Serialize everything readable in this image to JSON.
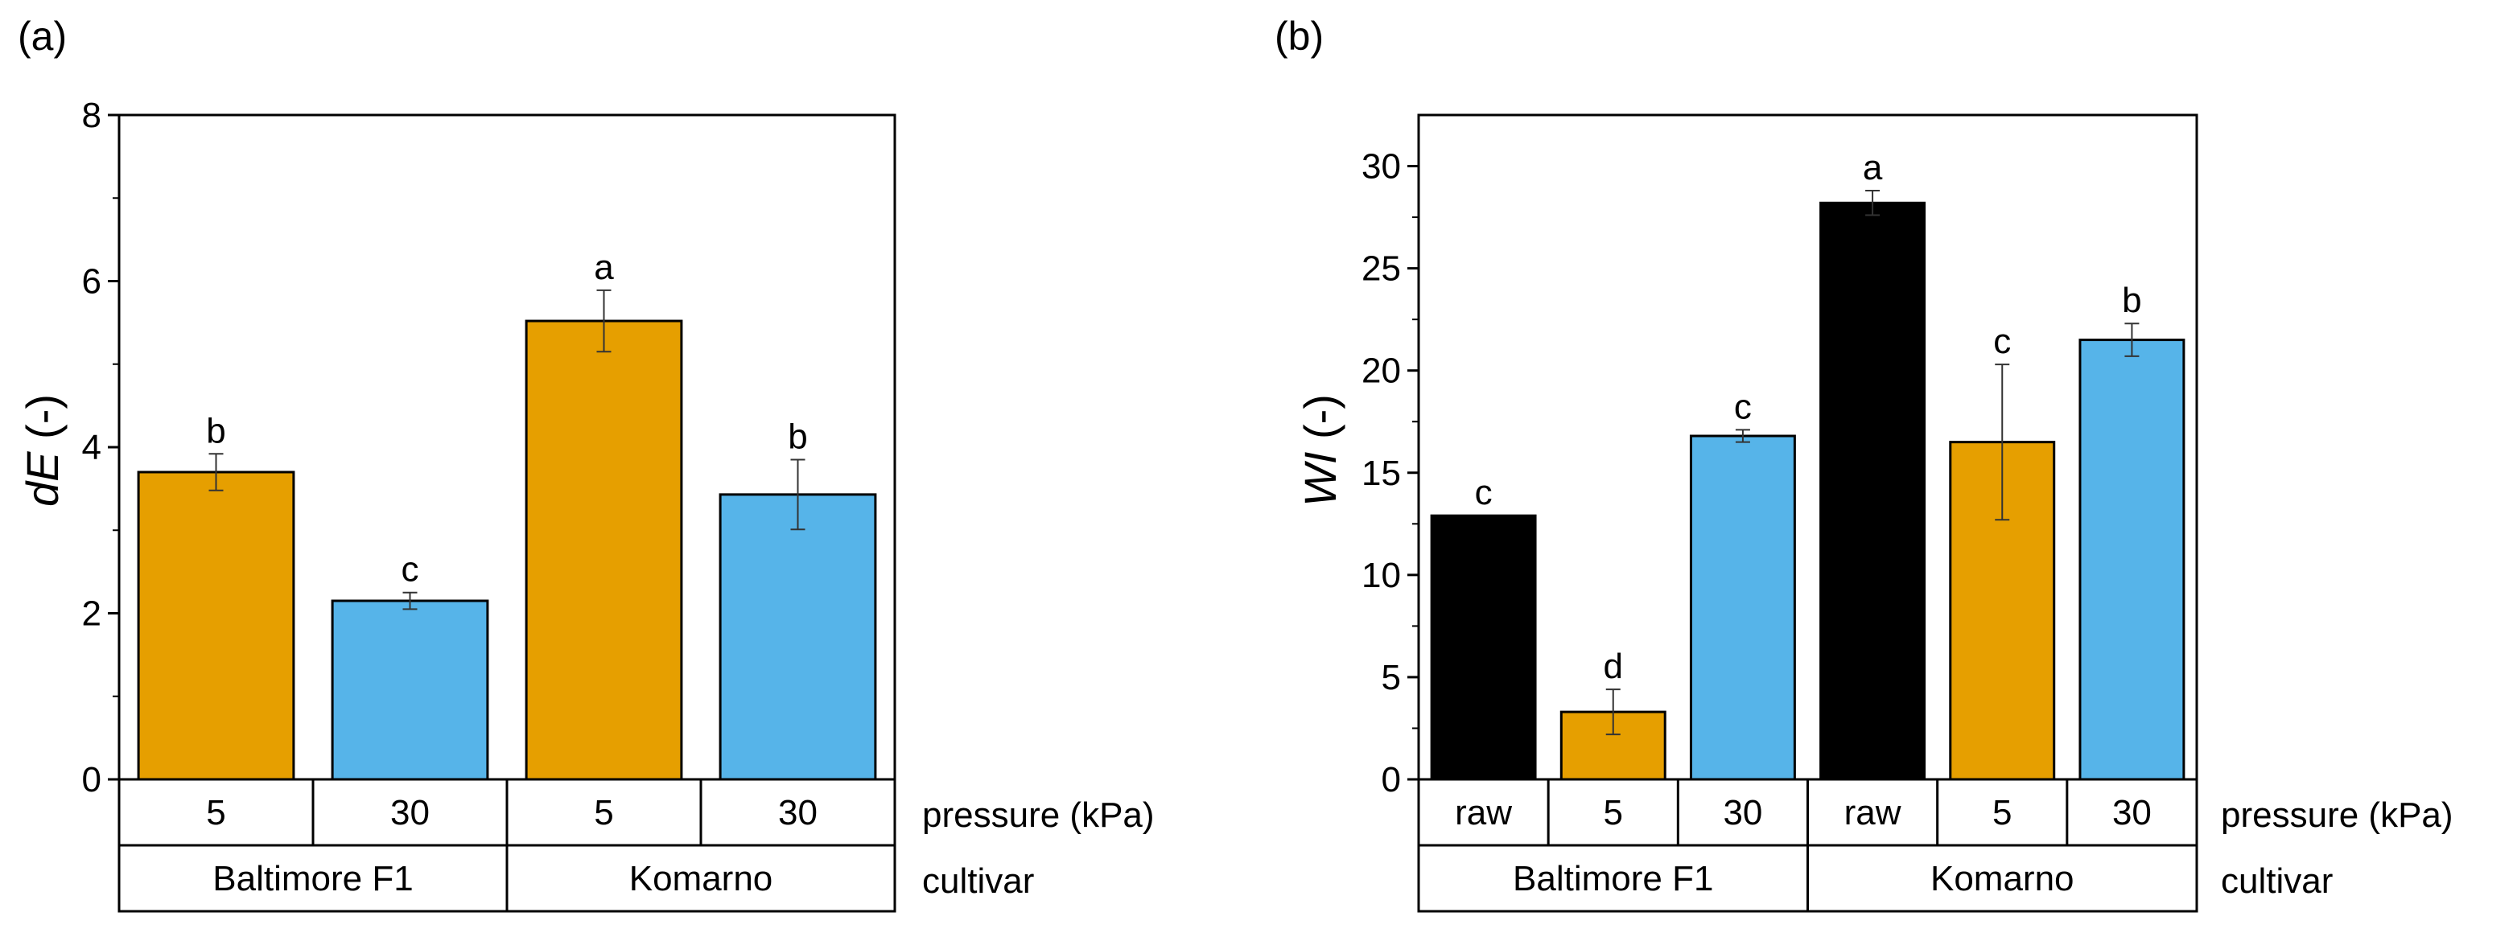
{
  "chart_data": [
    {
      "panel": "(a)",
      "type": "bar",
      "ylabel_main": "dE",
      "ylabel_unit": " (-)",
      "ylim": [
        0,
        8
      ],
      "yticks": [
        0,
        2,
        4,
        6,
        8
      ],
      "y_minor_step": 1,
      "pressure_row_label": "pressure (kPa)",
      "cultivar_row_label": "cultivar",
      "categories": [
        "5",
        "30",
        "5",
        "30"
      ],
      "cultivars": [
        {
          "name": "Baltimore F1",
          "span": 2
        },
        {
          "name": "Komarno",
          "span": 2
        }
      ],
      "bars": [
        {
          "value": 3.7,
          "err": 0.22,
          "letter": "b",
          "color": "#E69F00"
        },
        {
          "value": 2.15,
          "err": 0.1,
          "letter": "c",
          "color": "#56B4E9"
        },
        {
          "value": 5.52,
          "err": 0.37,
          "letter": "a",
          "color": "#E69F00"
        },
        {
          "value": 3.43,
          "err": 0.42,
          "letter": "b",
          "color": "#56B4E9"
        }
      ]
    },
    {
      "panel": "(b)",
      "type": "bar",
      "ylabel_main": "WI",
      "ylabel_unit": " (-)",
      "ylim": [
        0,
        32.5
      ],
      "yticks": [
        0,
        5,
        10,
        15,
        20,
        25,
        30
      ],
      "y_minor_step": 2.5,
      "pressure_row_label": "pressure (kPa)",
      "cultivar_row_label": "cultivar",
      "categories": [
        "raw",
        "5",
        "30",
        "raw",
        "5",
        "30"
      ],
      "cultivars": [
        {
          "name": "Baltimore F1",
          "span": 3
        },
        {
          "name": "Komarno",
          "span": 3
        }
      ],
      "bars": [
        {
          "value": 12.9,
          "err": 0.0,
          "letter": "c",
          "color": "#000000"
        },
        {
          "value": 3.3,
          "err": 1.1,
          "letter": "d",
          "color": "#E69F00"
        },
        {
          "value": 16.8,
          "err": 0.3,
          "letter": "c",
          "color": "#56B4E9"
        },
        {
          "value": 28.2,
          "err": 0.6,
          "letter": "a",
          "color": "#000000"
        },
        {
          "value": 16.5,
          "err": 3.8,
          "letter": "c",
          "color": "#E69F00"
        },
        {
          "value": 21.5,
          "err": 0.8,
          "letter": "b",
          "color": "#56B4E9"
        }
      ]
    }
  ]
}
